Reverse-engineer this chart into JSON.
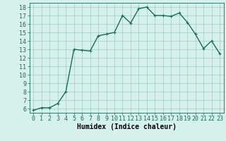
{
  "x": [
    0,
    1,
    2,
    3,
    4,
    5,
    6,
    7,
    8,
    9,
    10,
    11,
    12,
    13,
    14,
    15,
    16,
    17,
    18,
    19,
    20,
    21,
    22,
    23
  ],
  "y": [
    5.8,
    6.1,
    6.1,
    6.6,
    8.0,
    13.0,
    12.9,
    12.8,
    14.6,
    14.8,
    15.0,
    17.0,
    16.1,
    17.8,
    18.0,
    17.0,
    17.0,
    16.9,
    17.3,
    16.2,
    14.8,
    13.1,
    14.0,
    12.5
  ],
  "line_color": "#1a6b5a",
  "marker_color": "#1a6b5a",
  "bg_color": "#d6f0ec",
  "grid_color": "#a0ccc4",
  "xlabel": "Humidex (Indice chaleur)",
  "xlim": [
    -0.5,
    23.5
  ],
  "ylim": [
    5.5,
    18.5
  ],
  "yticks": [
    6,
    7,
    8,
    9,
    10,
    11,
    12,
    13,
    14,
    15,
    16,
    17,
    18
  ],
  "xticks": [
    0,
    1,
    2,
    3,
    4,
    5,
    6,
    7,
    8,
    9,
    10,
    11,
    12,
    13,
    14,
    15,
    16,
    17,
    18,
    19,
    20,
    21,
    22,
    23
  ],
  "xlabel_fontsize": 7,
  "tick_fontsize": 6,
  "linewidth": 1.0,
  "markersize": 2.5
}
